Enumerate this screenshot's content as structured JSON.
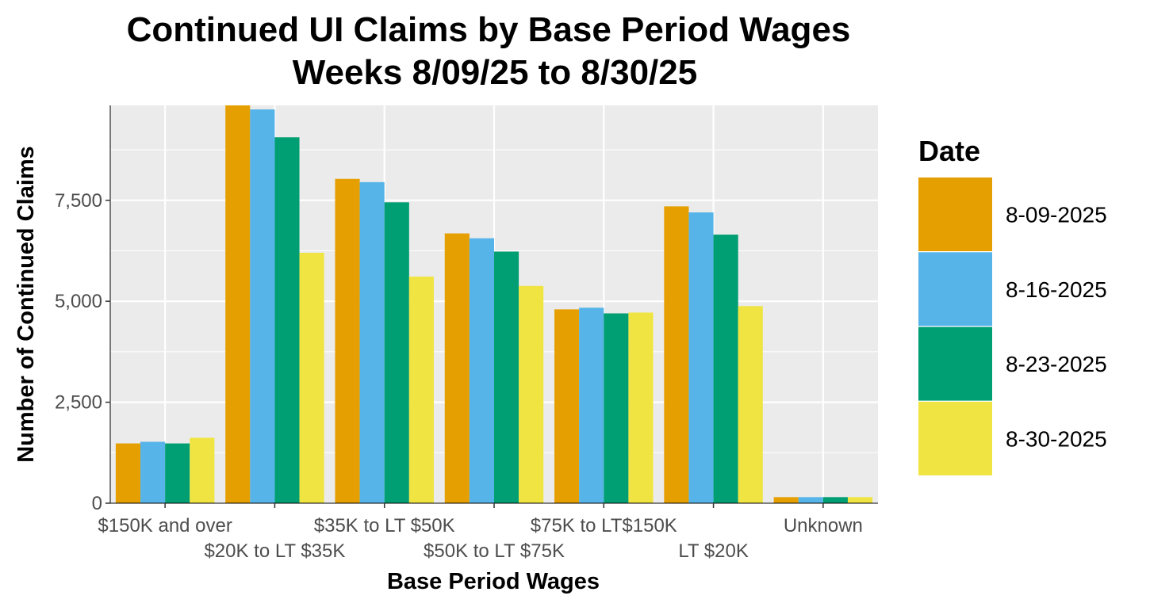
{
  "chart_data": {
    "type": "bar",
    "title": "Continued UI Claims by Base Period Wages",
    "subtitle": "Weeks 8/09/25 to 8/30/25",
    "xlabel": "Base Period Wages",
    "ylabel": "Number of Continued Claims",
    "categories": [
      "$150K and over",
      "$20K to LT $35K",
      "$35K to LT $50K",
      "$50K to LT $75K",
      "$75K to LT$150K",
      "LT $20K",
      "Unknown"
    ],
    "ylim": [
      0,
      9850
    ],
    "yticks": [
      0,
      2500,
      5000,
      7500
    ],
    "ytick_labels": [
      "0",
      "2,500",
      "5,000",
      "7,500"
    ],
    "grid": true,
    "legend_title": "Date",
    "legend_position": "right",
    "series": [
      {
        "name": "8-09-2025",
        "color": "#E69F00",
        "values": [
          1480,
          9850,
          8030,
          6680,
          4800,
          7350,
          150
        ]
      },
      {
        "name": "8-16-2025",
        "color": "#56B4E9",
        "values": [
          1520,
          9750,
          7950,
          6560,
          4840,
          7200,
          150
        ]
      },
      {
        "name": "8-23-2025",
        "color": "#009E73",
        "values": [
          1480,
          9060,
          7450,
          6230,
          4700,
          6650,
          150
        ]
      },
      {
        "name": "8-30-2025",
        "color": "#F0E442",
        "values": [
          1620,
          6200,
          5610,
          5380,
          4720,
          4880,
          150
        ]
      }
    ]
  }
}
